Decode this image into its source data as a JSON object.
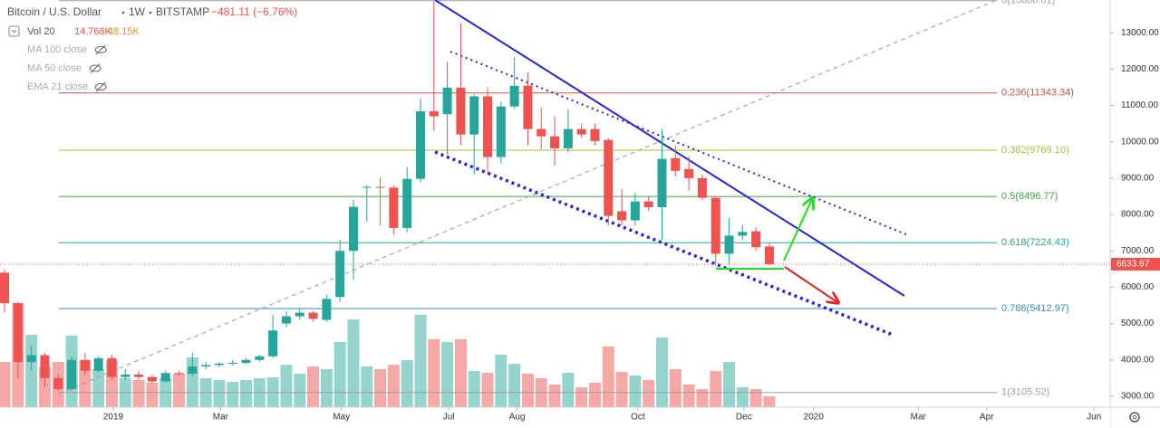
{
  "chart_data": {
    "type": "candlestick",
    "title": "Bitcoin / U.S. Dollar",
    "interval": "1W",
    "exchange": "BITSTAMP",
    "change_label": "−481.11 (−6.76%)",
    "volume_legend": {
      "name": "Vol 20",
      "value_label": "14.768K",
      "ma_label": "48.15K"
    },
    "indicators": [
      "MA 100 close",
      "MA 50 close",
      "EMA 21 close"
    ],
    "up_color": "#26a69a",
    "down_color": "#ef5350",
    "volume_up_color": "#94d4cd",
    "volume_down_color": "#f5a8a6",
    "categories": [
      null,
      null,
      null,
      null,
      null,
      null,
      null,
      null,
      null,
      null,
      null,
      null,
      null,
      null,
      null,
      null,
      null,
      null,
      null,
      null,
      null,
      null,
      null,
      null,
      null,
      null,
      null,
      null,
      null,
      null,
      null,
      null,
      null,
      null,
      null,
      null,
      null,
      null,
      null,
      null,
      null,
      null,
      null,
      null,
      null,
      null,
      null,
      null,
      null,
      null,
      null,
      null,
      null,
      null,
      null,
      null,
      null,
      null
    ],
    "open": [
      6400,
      5560,
      3940,
      4130,
      3500,
      3200,
      4000,
      3700,
      4050,
      3530,
      3600,
      3530,
      3410,
      3640,
      3620,
      3820,
      3860,
      3900,
      3920,
      4000,
      4100,
      5000,
      5200,
      5300,
      5100,
      5730,
      7000,
      8760,
      8760,
      8740,
      7630,
      8980,
      10840,
      10760,
      11490,
      10200,
      11250,
      9580,
      10970,
      11540,
      10350,
      10150,
      9820,
      10350,
      10350,
      10050,
      8090,
      7840,
      8360,
      8200,
      9550,
      9250,
      9000,
      8460,
      6920,
      7420,
      7540,
      7120
    ],
    "high": [
      6500,
      5600,
      4400,
      4200,
      3600,
      4100,
      4200,
      4100,
      4150,
      3750,
      3700,
      3600,
      3700,
      3700,
      4200,
      3950,
      3950,
      4000,
      4050,
      4150,
      5230,
      5350,
      5400,
      5350,
      5800,
      7300,
      8400,
      8800,
      9000,
      8800,
      9300,
      11200,
      13870,
      12200,
      13250,
      11300,
      11500,
      11100,
      12330,
      11900,
      10950,
      10700,
      10900,
      10500,
      10500,
      10100,
      8700,
      8600,
      8500,
      10350,
      9900,
      9600,
      9100,
      8500,
      7900,
      7700,
      7650,
      7200
    ],
    "low": [
      5300,
      3500,
      3700,
      3250,
      3150,
      3150,
      3600,
      3650,
      3450,
      3450,
      3450,
      3350,
      3380,
      3550,
      3550,
      3750,
      3800,
      3850,
      3880,
      3950,
      4050,
      4900,
      5100,
      5050,
      5050,
      5600,
      6200,
      7800,
      7700,
      7450,
      7500,
      8900,
      10300,
      9650,
      9900,
      9100,
      9100,
      9400,
      10900,
      9900,
      9800,
      9350,
      9700,
      10100,
      9900,
      7700,
      7700,
      7700,
      8100,
      7300,
      9050,
      8650,
      8400,
      6600,
      6600,
      7300,
      7000,
      6600
    ],
    "close": [
      5560,
      3940,
      4130,
      3500,
      3200,
      4000,
      3700,
      4050,
      3530,
      3600,
      3530,
      3410,
      3640,
      3620,
      3820,
      3860,
      3900,
      3920,
      4000,
      4100,
      4810,
      5200,
      5300,
      5130,
      5680,
      7000,
      8210,
      8760,
      8740,
      7630,
      8980,
      10840,
      10700,
      11490,
      10200,
      11250,
      9580,
      10970,
      11540,
      10350,
      10150,
      9820,
      10350,
      10200,
      10020,
      7960,
      7840,
      8360,
      8200,
      9530,
      9200,
      9000,
      8460,
      6920,
      7420,
      7520,
      7100,
      6633.97
    ],
    "volume": [
      61500,
      141500,
      98400,
      55400,
      61500,
      97200,
      64000,
      51700,
      64000,
      39400,
      36900,
      33200,
      39400,
      45500,
      67700,
      39400,
      36900,
      34400,
      36900,
      39400,
      40600,
      57600,
      45500,
      55400,
      51700,
      88600,
      119300,
      55400,
      51700,
      57600,
      64000,
      125500,
      92300,
      88600,
      92300,
      49200,
      46700,
      71300,
      59000,
      45500,
      39400,
      30800,
      46700,
      27100,
      33200,
      82400,
      47900,
      43100,
      36900,
      94700,
      51700,
      30800,
      24600,
      49200,
      61500,
      27100,
      24600,
      14768
    ],
    "last_price_label": "6633.97",
    "ylim": [
      2700,
      13900
    ],
    "yticks": [
      {
        "value": 3000,
        "label": "3000.00"
      },
      {
        "value": 4000,
        "label": "4000.00"
      },
      {
        "value": 5000,
        "label": "5000.00"
      },
      {
        "value": 6000,
        "label": "6000.00"
      },
      {
        "value": 7000,
        "label": "7000.00"
      },
      {
        "value": 8000,
        "label": "8000.00"
      },
      {
        "value": 9000,
        "label": "9000.00"
      },
      {
        "value": 10000,
        "label": "10000.00"
      },
      {
        "value": 11000,
        "label": "11000.00"
      },
      {
        "value": 12000,
        "label": "12000.00"
      },
      {
        "value": 13000,
        "label": "13000.00"
      }
    ],
    "xlim": [
      -0.34,
      82.4
    ],
    "xticks": [
      {
        "value": 8.1,
        "label": "2019"
      },
      {
        "value": 16.1,
        "label": "Mar"
      },
      {
        "value": 25.1,
        "label": "May"
      },
      {
        "value": 33.1,
        "label": "Jul"
      },
      {
        "value": 38.2,
        "label": "Aug"
      },
      {
        "value": 47.2,
        "label": "Oct"
      },
      {
        "value": 55.1,
        "label": "Dec"
      },
      {
        "value": 60.3,
        "label": "2020"
      },
      {
        "value": 68.1,
        "label": "Mar"
      },
      {
        "value": 73.2,
        "label": "Apr"
      },
      {
        "value": 81.2,
        "label": "Jun"
      }
    ],
    "fib_levels": [
      {
        "label": "0(13880.61)",
        "value": 13880.61,
        "color": "#9e9e9e"
      },
      {
        "label": "0.236(11343.34)",
        "value": 11343.34,
        "color": "#d4504c"
      },
      {
        "label": "0.382(9769.10)",
        "value": 9769.1,
        "color": "#9fc43a"
      },
      {
        "label": "0.5(8496.77)",
        "value": 8496.77,
        "color": "#3fa548"
      },
      {
        "label": "0.618(7224.43)",
        "value": 7224.43,
        "color": "#2aa38f"
      },
      {
        "label": "0.786(5412.97)",
        "value": 5412.97,
        "color": "#2f8fbf"
      },
      {
        "label": "1(3105.52)",
        "value": 3105.52,
        "color": "#9e9e9e"
      }
    ],
    "grid": false
  }
}
